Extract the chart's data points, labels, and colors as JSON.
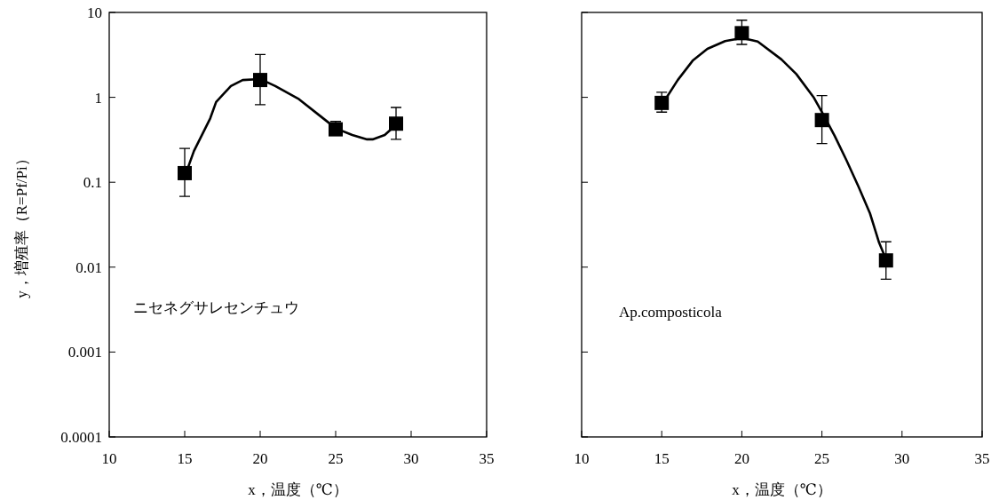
{
  "chart_data": [
    {
      "type": "scatter",
      "xlabel": "x，温度（℃）",
      "ylabel": "y，増殖率（R=Pf/Pi）",
      "log": "y",
      "xlim": [
        10,
        35
      ],
      "ylim": [
        0.0001,
        10
      ],
      "xticks": [
        10,
        15,
        20,
        25,
        30,
        35
      ],
      "yticks": [
        0.0001,
        0.001,
        0.01,
        0.1,
        1,
        10
      ],
      "annotations": [
        "ニセネグサレセンチュウ"
      ],
      "series": [
        {
          "type": "line",
          "color": "#000000",
          "marker": "none",
          "x": [
            15.12,
            15.61,
            16.69,
            17.08,
            18.06,
            18.84,
            20.02,
            21.0,
            22.57,
            23.94,
            25.02,
            26.1,
            27.08,
            27.45,
            28.25,
            29.04
          ],
          "values": [
            0.133,
            0.233,
            0.565,
            0.88,
            1.36,
            1.6,
            1.64,
            1.36,
            0.95,
            0.61,
            0.43,
            0.36,
            0.32,
            0.32,
            0.36,
            0.48
          ]
        },
        {
          "type": "scatter",
          "color": "#000000",
          "marker": "square",
          "x": [
            15,
            20,
            25,
            29
          ],
          "values": [
            0.128,
            1.6,
            0.42,
            0.49
          ],
          "errors": [
            [
              0.068,
              0.25
            ],
            [
              0.82,
              3.2
            ],
            [
              0.42,
              0.52
            ],
            [
              0.32,
              0.76
            ]
          ]
        }
      ]
    },
    {
      "type": "scatter",
      "xlabel": "x，温度（℃）",
      "log": "y",
      "xlim": [
        10,
        35
      ],
      "ylim": [
        0.0001,
        10
      ],
      "xticks": [
        10,
        15,
        20,
        25,
        30,
        35
      ],
      "yticks": [
        0.0001,
        0.001,
        0.01,
        0.1,
        1,
        10
      ],
      "tick_labels": "x",
      "annotations": [
        "Ap.composticola"
      ],
      "series": [
        {
          "type": "line",
          "color": "#000000",
          "marker": "none",
          "x": [
            15.17,
            16.0,
            16.93,
            17.85,
            18.96,
            20.03,
            20.99,
            22.47,
            23.4,
            24.5,
            25.06,
            25.8,
            26.54,
            27.28,
            28.0,
            28.57,
            29.03
          ],
          "values": [
            0.91,
            1.6,
            2.7,
            3.72,
            4.6,
            5.0,
            4.55,
            2.8,
            1.88,
            0.99,
            0.64,
            0.35,
            0.18,
            0.089,
            0.043,
            0.0194,
            0.012
          ]
        },
        {
          "type": "scatter",
          "color": "#000000",
          "marker": "square",
          "x": [
            15,
            20,
            25,
            29
          ],
          "values": [
            0.86,
            5.7,
            0.54,
            0.012
          ],
          "errors": [
            [
              0.67,
              1.15
            ],
            [
              4.2,
              8.1
            ],
            [
              0.285,
              1.05
            ],
            [
              0.0072,
              0.0199
            ]
          ]
        }
      ]
    }
  ]
}
